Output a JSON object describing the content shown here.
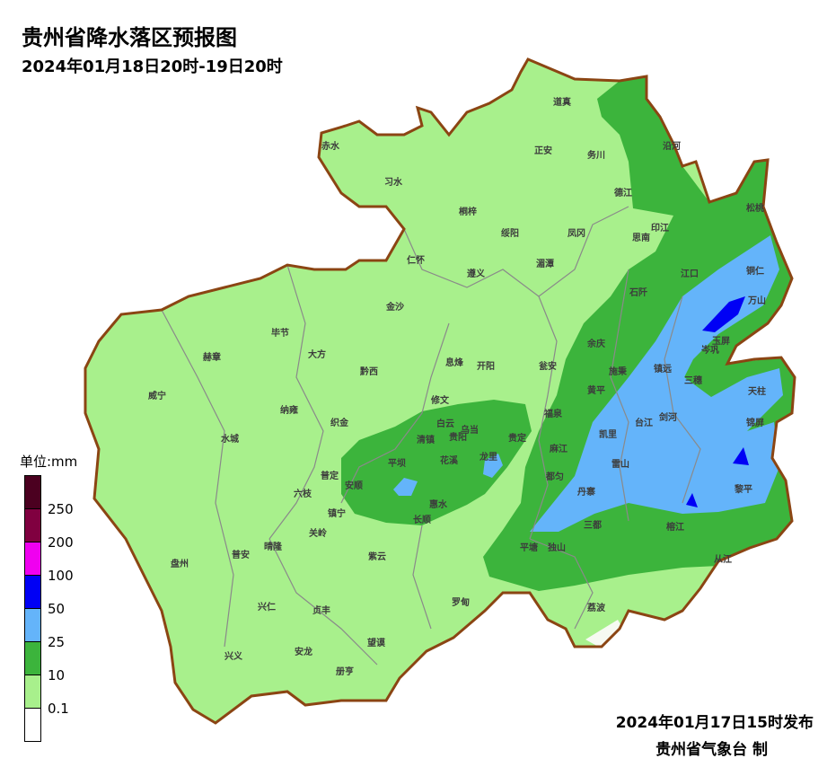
{
  "header": {
    "title": "贵州省降水落区预报图",
    "period": "2024年01月18日20时-19日20时"
  },
  "legend": {
    "unit": "单位:mm",
    "bins": [
      {
        "label": "250",
        "color": "#4b0020"
      },
      {
        "label": "200",
        "color": "#800040"
      },
      {
        "label": "100",
        "color": "#f000f0"
      },
      {
        "label": "50",
        "color": "#0000f5"
      },
      {
        "label": "25",
        "color": "#64b4fa"
      },
      {
        "label": "10",
        "color": "#3cb43c"
      },
      {
        "label": "0.1",
        "color": "#a8f08c"
      },
      {
        "label": "",
        "color": "#ffffff"
      }
    ]
  },
  "map": {
    "border_color": "#8b4513",
    "counties": [
      "道真",
      "正安",
      "务川",
      "沿河",
      "赤水",
      "习水",
      "桐梓",
      "绥阳",
      "凤冈",
      "德江",
      "印江",
      "思南",
      "松桃",
      "江口",
      "铜仁",
      "万山",
      "玉屏",
      "岑巩",
      "仁怀",
      "遵义",
      "湄潭",
      "石阡",
      "金沙",
      "毕节",
      "大方",
      "黔西",
      "息烽",
      "开阳",
      "瓮安",
      "余庆",
      "施秉",
      "镇远",
      "三穗",
      "天柱",
      "赫章",
      "威宁",
      "纳雍",
      "织金",
      "修文",
      "黄平",
      "福泉",
      "台江",
      "剑河",
      "锦屏",
      "凯里",
      "麻江",
      "水城",
      "清镇",
      "白云",
      "乌当",
      "贵阳",
      "贵定",
      "龙里",
      "花溪",
      "平坝",
      "雷山",
      "都匀",
      "普定",
      "安顺",
      "六枝",
      "丹寨",
      "黎平",
      "惠水",
      "长顺",
      "镇宁",
      "关岭",
      "三都",
      "榕江",
      "平塘",
      "独山",
      "从江",
      "盘州",
      "普安",
      "晴隆",
      "紫云",
      "罗甸",
      "荔波",
      "兴仁",
      "贞丰",
      "望谟",
      "安龙",
      "兴义",
      "册亨"
    ]
  },
  "footer": {
    "issued": "2024年01月17日15时发布",
    "issuer": "贵州省气象台 制"
  }
}
